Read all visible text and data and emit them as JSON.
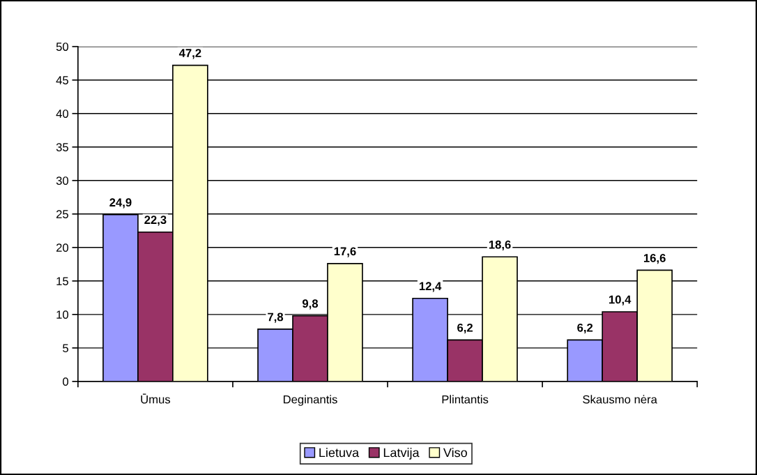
{
  "chart_data": {
    "type": "bar",
    "categories": [
      "Ūmus",
      "Deginantis",
      "Plintantis",
      "Skausmo nėra"
    ],
    "series": [
      {
        "name": "Lietuva",
        "color": "#9999ff",
        "values": [
          24.9,
          7.8,
          12.4,
          6.2
        ],
        "value_labels": [
          "24,9",
          "7,8",
          "12,4",
          "6,2"
        ]
      },
      {
        "name": "Latvija",
        "color": "#993366",
        "values": [
          22.3,
          9.8,
          6.2,
          10.4
        ],
        "value_labels": [
          "22,3",
          "9,8",
          "6,2",
          "10,4"
        ]
      },
      {
        "name": "Viso",
        "color": "#ffffcc",
        "values": [
          47.2,
          17.6,
          18.6,
          16.6
        ],
        "value_labels": [
          "47,2",
          "17,6",
          "18,6",
          "16,6"
        ]
      }
    ],
    "ylim": [
      0,
      50
    ],
    "yticks": [
      0,
      5,
      10,
      15,
      20,
      25,
      30,
      35,
      40,
      45,
      50
    ],
    "grid": "y",
    "legend": "bottom"
  }
}
